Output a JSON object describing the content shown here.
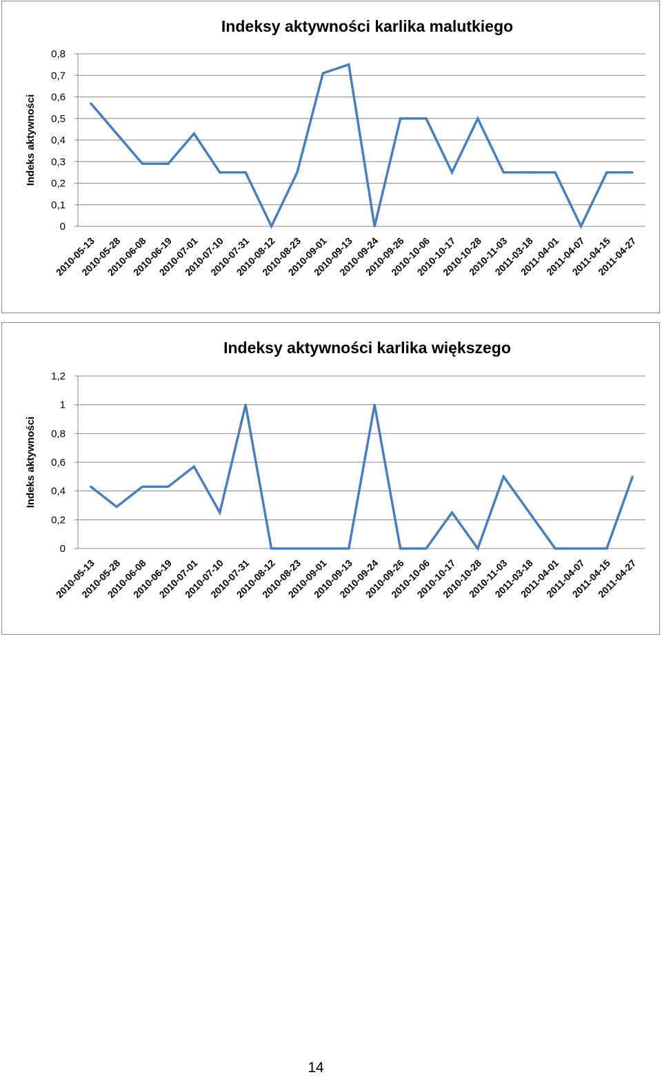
{
  "page": {
    "number": "14"
  },
  "chart_data": [
    {
      "type": "line",
      "title": "Indeksy aktywności  karlika malutkiego",
      "ylabel": "Indeks aktywności",
      "xlabel": "",
      "ylim": [
        0,
        0.8
      ],
      "yticks": [
        "0",
        "0,1",
        "0,2",
        "0,3",
        "0,4",
        "0,5",
        "0,6",
        "0,7",
        "0,8"
      ],
      "grid": true,
      "legend": "none",
      "color": "#4A7EBB",
      "categories": [
        "2010-05-13",
        "2010-05-28",
        "2010-06-08",
        "2010-06-19",
        "2010-07-01",
        "2010-07-10",
        "2010-07-31",
        "2010-08-12",
        "2010-08-23",
        "2010-09-01",
        "2010-09-13",
        "2010-09-24",
        "2010-09-26",
        "2010-10-06",
        "2010-10-17",
        "2010-10-28",
        "2010-11-03",
        "2011-03-18",
        "2011-04-01",
        "2011-04-07",
        "2011-04-15",
        "2011-04-27"
      ],
      "values": [
        0.57,
        0.43,
        0.29,
        0.29,
        0.43,
        0.25,
        0.25,
        0,
        0.25,
        0.71,
        0.75,
        0,
        0.5,
        0.5,
        0.25,
        0.5,
        0.25,
        0.25,
        0.25,
        0,
        0.25,
        0.25
      ]
    },
    {
      "type": "line",
      "title": "Indeksy aktywności  karlika większego",
      "ylabel": "Indeks aktywności",
      "xlabel": "",
      "ylim": [
        0,
        1.2
      ],
      "yticks": [
        "0",
        "0,2",
        "0,4",
        "0,6",
        "0,8",
        "1",
        "1,2"
      ],
      "grid": true,
      "legend": "none",
      "color": "#4A7EBB",
      "categories": [
        "2010-05-13",
        "2010-05-28",
        "2010-06-08",
        "2010-06-19",
        "2010-07-01",
        "2010-07-10",
        "2010-07-31",
        "2010-08-12",
        "2010-08-23",
        "2010-09-01",
        "2010-09-13",
        "2010-09-24",
        "2010-09-26",
        "2010-10-06",
        "2010-10-17",
        "2010-10-28",
        "2010-11-03",
        "2011-03-18",
        "2011-04-01",
        "2011-04-07",
        "2011-04-15",
        "2011-04-27"
      ],
      "values": [
        0.43,
        0.29,
        0.43,
        0.43,
        0.57,
        0.25,
        1,
        0,
        0,
        0,
        0,
        1,
        0,
        0,
        0.25,
        0,
        0.5,
        0.25,
        0,
        0,
        0,
        0.5
      ]
    }
  ]
}
